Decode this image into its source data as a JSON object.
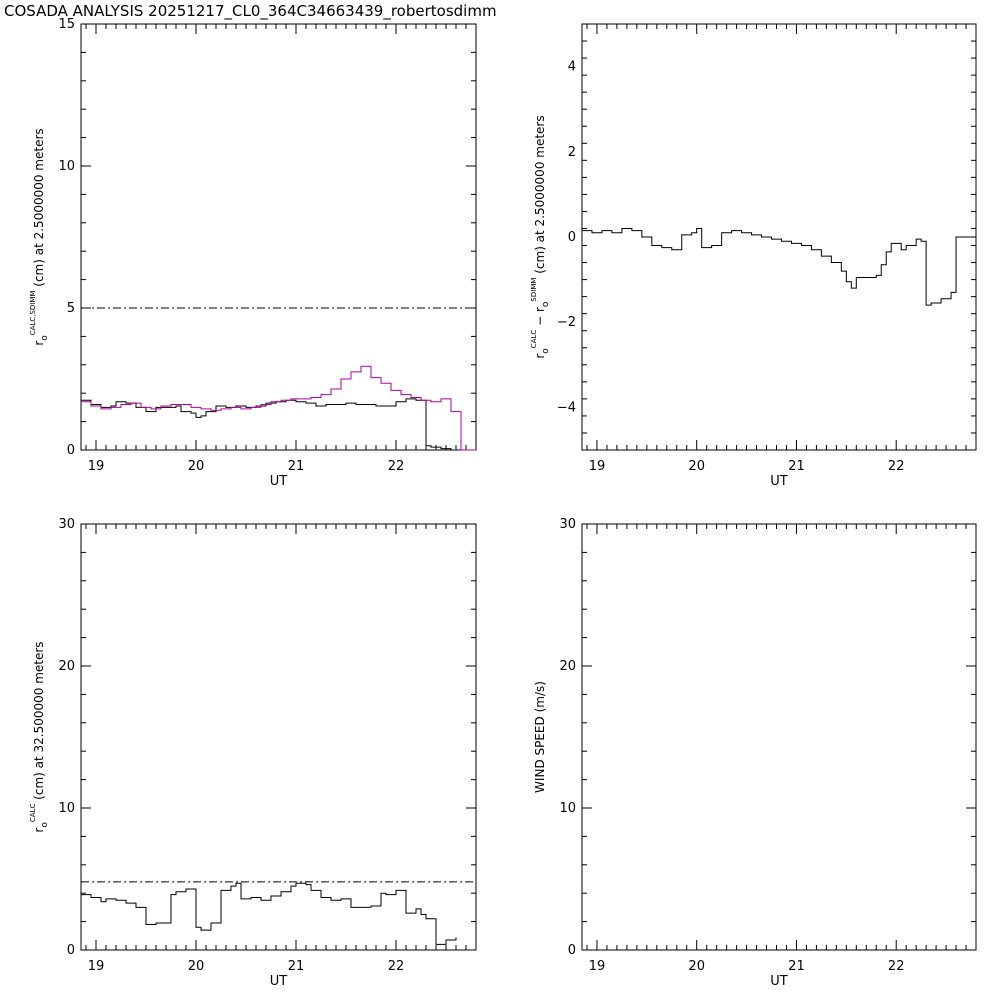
{
  "title": "COSADA ANALYSIS 20251217_CL0_364C34663439_robertosdimm",
  "colors": {
    "black": "#000000",
    "magenta": "#b0009a"
  },
  "chart_data": [
    {
      "id": "panel1",
      "type": "line",
      "xlabel": "UT",
      "ylabel_parts": {
        "r": "r",
        "sub": "o",
        "sup": "CALC,SDIMM",
        "rest": " (cm)  at  2.5000000 meters"
      },
      "xlim": [
        18.85,
        22.8
      ],
      "ylim": [
        0,
        15
      ],
      "xticks": [
        19,
        20,
        21,
        22
      ],
      "xticklabels": [
        "19",
        "20",
        "21",
        "22"
      ],
      "yticks": [
        0,
        5,
        10,
        15
      ],
      "yticklabels": [
        "0",
        "5",
        "10",
        "15"
      ],
      "reference_line": 5.0,
      "series": [
        {
          "color": "black",
          "step": true,
          "x": [
            18.85,
            18.95,
            19.05,
            19.15,
            19.2,
            19.3,
            19.4,
            19.5,
            19.6,
            19.7,
            19.8,
            19.85,
            19.95,
            20.0,
            20.05,
            20.1,
            20.2,
            20.3,
            20.4,
            20.5,
            20.6,
            20.7,
            20.8,
            20.9,
            21.0,
            21.1,
            21.2,
            21.3,
            21.4,
            21.5,
            21.6,
            21.7,
            21.8,
            21.9,
            22.0,
            22.1,
            22.2,
            22.3,
            22.35,
            22.45,
            22.55
          ],
          "y": [
            1.75,
            1.6,
            1.5,
            1.55,
            1.7,
            1.65,
            1.5,
            1.35,
            1.5,
            1.5,
            1.55,
            1.35,
            1.3,
            1.15,
            1.2,
            1.35,
            1.55,
            1.5,
            1.55,
            1.5,
            1.55,
            1.65,
            1.7,
            1.75,
            1.7,
            1.65,
            1.55,
            1.6,
            1.6,
            1.65,
            1.6,
            1.6,
            1.55,
            1.55,
            1.7,
            1.8,
            1.75,
            0.15,
            0.1,
            0.05,
            0.0
          ]
        },
        {
          "color": "magenta",
          "step": true,
          "x": [
            18.85,
            18.95,
            19.05,
            19.15,
            19.25,
            19.35,
            19.45,
            19.55,
            19.65,
            19.75,
            19.85,
            19.95,
            20.05,
            20.15,
            20.25,
            20.35,
            20.45,
            20.55,
            20.65,
            20.75,
            20.85,
            20.95,
            21.05,
            21.15,
            21.25,
            21.35,
            21.45,
            21.55,
            21.65,
            21.75,
            21.85,
            21.95,
            22.05,
            22.15,
            22.25,
            22.35,
            22.45,
            22.55,
            22.65,
            22.8
          ],
          "y": [
            1.7,
            1.55,
            1.45,
            1.5,
            1.6,
            1.65,
            1.5,
            1.45,
            1.55,
            1.6,
            1.6,
            1.5,
            1.45,
            1.4,
            1.45,
            1.5,
            1.45,
            1.5,
            1.6,
            1.7,
            1.75,
            1.8,
            1.8,
            1.85,
            1.95,
            2.15,
            2.5,
            2.75,
            2.95,
            2.55,
            2.35,
            2.1,
            1.95,
            1.85,
            1.75,
            1.7,
            1.8,
            1.35,
            0.0,
            0.0
          ]
        }
      ]
    },
    {
      "id": "panel2",
      "type": "line",
      "xlabel": "UT",
      "ylabel_parts": {
        "r": "r",
        "sub": "o",
        "sup": "CALC",
        "mid": " − ",
        "r2": "r",
        "sub2": "o",
        "sup2": "SDIMM",
        "rest": " (cm)  at  2.5000000 meters"
      },
      "xlim": [
        18.85,
        22.8
      ],
      "ylim": [
        -5,
        5
      ],
      "xticks": [
        19,
        20,
        21,
        22
      ],
      "xticklabels": [
        "19",
        "20",
        "21",
        "22"
      ],
      "yticks": [
        -4,
        -2,
        0,
        2,
        4
      ],
      "yticklabels": [
        "−4",
        "−2",
        "0",
        "2",
        "4"
      ],
      "series": [
        {
          "color": "black",
          "step": true,
          "x": [
            18.85,
            18.95,
            19.05,
            19.15,
            19.25,
            19.35,
            19.45,
            19.55,
            19.65,
            19.75,
            19.85,
            19.95,
            20.0,
            20.05,
            20.15,
            20.25,
            20.35,
            20.45,
            20.55,
            20.65,
            20.75,
            20.85,
            20.95,
            21.05,
            21.15,
            21.25,
            21.35,
            21.45,
            21.5,
            21.55,
            21.6,
            21.7,
            21.8,
            21.85,
            21.9,
            21.95,
            22.05,
            22.1,
            22.2,
            22.25,
            22.3,
            22.35,
            22.45,
            22.55,
            22.6,
            22.8
          ],
          "y": [
            0.15,
            0.1,
            0.15,
            0.1,
            0.2,
            0.15,
            0.0,
            -0.2,
            -0.25,
            -0.3,
            0.05,
            0.1,
            0.2,
            -0.25,
            -0.2,
            0.1,
            0.15,
            0.1,
            0.05,
            0.0,
            -0.05,
            -0.1,
            -0.15,
            -0.2,
            -0.3,
            -0.45,
            -0.6,
            -0.8,
            -1.05,
            -1.2,
            -0.95,
            -0.95,
            -0.9,
            -0.65,
            -0.35,
            -0.15,
            -0.3,
            -0.2,
            -0.05,
            -0.1,
            -1.6,
            -1.55,
            -1.45,
            -1.3,
            0.0,
            0.0
          ]
        }
      ]
    },
    {
      "id": "panel3",
      "type": "line",
      "xlabel": "UT",
      "ylabel_parts": {
        "r": "r",
        "sub": "o",
        "sup": "CALC",
        "rest": " (cm)  at  32.500000 meters"
      },
      "xlim": [
        18.85,
        22.8
      ],
      "ylim": [
        0,
        30
      ],
      "xticks": [
        19,
        20,
        21,
        22
      ],
      "xticklabels": [
        "19",
        "20",
        "21",
        "22"
      ],
      "yticks": [
        0,
        10,
        20,
        30
      ],
      "yticklabels": [
        "0",
        "10",
        "20",
        "30"
      ],
      "reference_line": 4.8,
      "series": [
        {
          "color": "black",
          "step": true,
          "x": [
            18.85,
            18.95,
            19.05,
            19.1,
            19.2,
            19.3,
            19.4,
            19.5,
            19.6,
            19.7,
            19.75,
            19.8,
            19.9,
            20.0,
            20.05,
            20.15,
            20.25,
            20.35,
            20.4,
            20.45,
            20.55,
            20.65,
            20.75,
            20.85,
            20.95,
            21.0,
            21.1,
            21.15,
            21.25,
            21.35,
            21.45,
            21.55,
            21.65,
            21.75,
            21.85,
            21.9,
            22.0,
            22.1,
            22.2,
            22.25,
            22.3,
            22.4,
            22.5,
            22.6
          ],
          "y": [
            3.9,
            3.7,
            3.4,
            3.6,
            3.5,
            3.3,
            3.0,
            1.8,
            1.9,
            1.9,
            3.9,
            4.1,
            4.3,
            1.6,
            1.4,
            1.9,
            4.2,
            4.5,
            4.7,
            3.6,
            3.7,
            3.5,
            3.8,
            4.1,
            4.5,
            4.7,
            4.6,
            4.2,
            3.7,
            3.5,
            3.6,
            3.0,
            3.0,
            3.1,
            4.0,
            3.9,
            4.2,
            2.6,
            2.9,
            2.5,
            2.2,
            0.4,
            0.7,
            0.9
          ]
        }
      ]
    },
    {
      "id": "panel4",
      "type": "line",
      "xlabel": "UT",
      "ylabel": "WIND SPEED (m/s)",
      "xlim": [
        18.85,
        22.8
      ],
      "ylim": [
        0,
        30
      ],
      "xticks": [
        19,
        20,
        21,
        22
      ],
      "xticklabels": [
        "19",
        "20",
        "21",
        "22"
      ],
      "yticks": [
        0,
        10,
        20,
        30
      ],
      "yticklabels": [
        "0",
        "10",
        "20",
        "30"
      ],
      "series": []
    }
  ]
}
